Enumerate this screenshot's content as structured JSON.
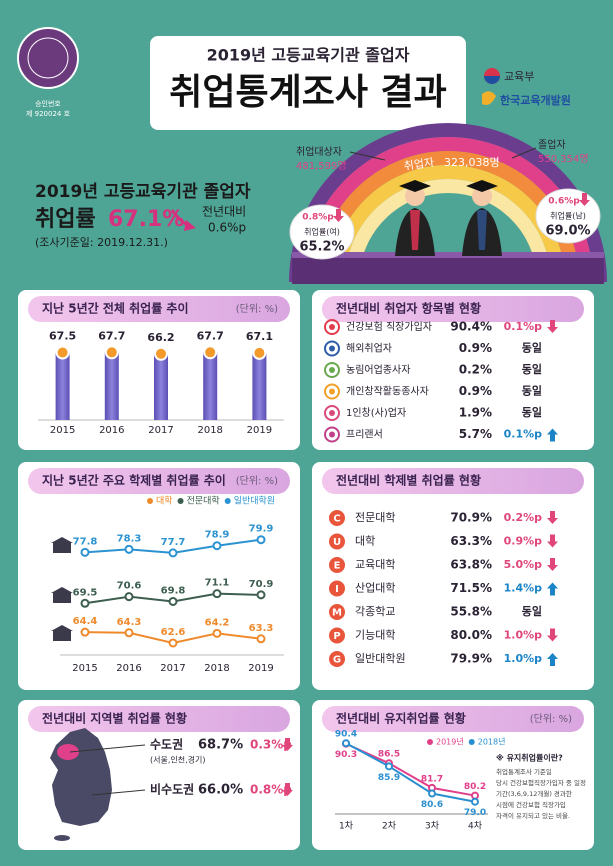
{
  "header": {
    "approval_label": "승인번호",
    "approval_no": "제 920024 호",
    "subtitle": "2019년 고등교육기관 졸업자",
    "title": "취업통계조사 결과",
    "ministry": "교육부",
    "institute": "한국교육개발원"
  },
  "hero": {
    "targets_label": "취업대상자",
    "targets": "481,599명",
    "employed_label": "취업자",
    "employed": "323,038명",
    "graduates_label": "졸업자",
    "graduates": "550,354명",
    "female": {
      "change": "0.8%p",
      "label": "취업률(여)",
      "rate": "65.2%",
      "direction": "down"
    },
    "male": {
      "change": "0.6%p",
      "label": "취업률(남)",
      "rate": "69.0%",
      "direction": "down"
    }
  },
  "summary": {
    "heading": "2019년 고등교육기관 졸업자",
    "label": "취업률",
    "rate": "67.1%",
    "change_label": "전년대비",
    "change": "0.6%p",
    "note": "(조사기준일: 2019.12.31.)"
  },
  "overall_trend": {
    "title": "지난 5년간 전체 취업률 추이",
    "unit": "(단위: %)",
    "chart_data": {
      "type": "bar",
      "categories": [
        "2015",
        "2016",
        "2017",
        "2018",
        "2019"
      ],
      "values": [
        67.5,
        67.7,
        66.2,
        67.7,
        67.1
      ],
      "color": "#7b6fc7",
      "marker_color": "#f39a2b",
      "ylim": [
        0,
        80
      ]
    }
  },
  "items": {
    "title": "전년대비 취업자 항목별 현황",
    "rows": [
      {
        "label": "건강보험 직장가입자",
        "value": "90.4%",
        "change": "0.1%p",
        "direction": "down"
      },
      {
        "label": "해외취업자",
        "value": "0.9%",
        "change": "동일",
        "direction": "same"
      },
      {
        "label": "농림어업종사자",
        "value": "0.2%",
        "change": "동일",
        "direction": "same"
      },
      {
        "label": "개인창작활동종사자",
        "value": "0.9%",
        "change": "동일",
        "direction": "same"
      },
      {
        "label": "1인창(사)업자",
        "value": "1.9%",
        "change": "동일",
        "direction": "same"
      },
      {
        "label": "프리랜서",
        "value": "5.7%",
        "change": "0.1%p",
        "direction": "up"
      }
    ]
  },
  "schools_trend": {
    "title": "지난 5년간 주요 학제별 취업률 추이",
    "unit": "(단위: %)",
    "chart_data": {
      "type": "line",
      "categories": [
        "2015",
        "2016",
        "2017",
        "2018",
        "2019"
      ],
      "series": [
        {
          "name": "대학",
          "color": "#ef8a2c",
          "values": [
            64.4,
            64.3,
            62.6,
            64.2,
            63.3
          ]
        },
        {
          "name": "전문대학",
          "color": "#3d5e4e",
          "values": [
            69.5,
            70.6,
            69.8,
            71.1,
            70.9
          ]
        },
        {
          "name": "일반대학원",
          "color": "#2b93d1",
          "values": [
            77.8,
            78.3,
            77.7,
            78.9,
            79.9
          ]
        }
      ]
    }
  },
  "schools": {
    "title": "전년대비 학제별 취업률 현황",
    "rows": [
      {
        "letter": "C",
        "label": "전문대학",
        "value": "70.9%",
        "change": "0.2%p",
        "direction": "down"
      },
      {
        "letter": "U",
        "label": "대학",
        "value": "63.3%",
        "change": "0.9%p",
        "direction": "down"
      },
      {
        "letter": "E",
        "label": "교육대학",
        "value": "63.8%",
        "change": "5.0%p",
        "direction": "down"
      },
      {
        "letter": "I",
        "label": "산업대학",
        "value": "71.5%",
        "change": "1.4%p",
        "direction": "up"
      },
      {
        "letter": "M",
        "label": "각종학교",
        "value": "55.8%",
        "change": "동일",
        "direction": "same"
      },
      {
        "letter": "P",
        "label": "기능대학",
        "value": "80.0%",
        "change": "1.0%p",
        "direction": "down"
      },
      {
        "letter": "G",
        "label": "일반대학원",
        "value": "79.9%",
        "change": "1.0%p",
        "direction": "up"
      }
    ]
  },
  "regions": {
    "title": "전년대비 지역별 취업률 현황",
    "rows": [
      {
        "label": "수도권",
        "sublabel": "(서울,인천,경기)",
        "value": "68.7%",
        "change": "0.3%p",
        "direction": "down"
      },
      {
        "label": "비수도권",
        "value": "66.0%",
        "change": "0.8%p",
        "direction": "down"
      }
    ]
  },
  "retention": {
    "title": "전년대비 유지취업률 현황",
    "unit": "(단위: %)",
    "chart_data": {
      "type": "line",
      "categories": [
        "1차",
        "2차",
        "3차",
        "4차"
      ],
      "series": [
        {
          "name": "2019년",
          "color": "#e0408a",
          "values": [
            90.3,
            86.5,
            81.7,
            80.2
          ]
        },
        {
          "name": "2018년",
          "color": "#2a8fd0",
          "values": [
            90.4,
            85.9,
            80.6,
            79.0
          ],
          "value_labels": [
            "90.4",
            "85.9",
            "80.6",
            "79.0"
          ]
        }
      ],
      "ylim": [
        77,
        92
      ]
    },
    "note_title": "※ 유지취업률이란?",
    "note_lines": [
      "취업통계조사 기준일",
      "당시 건강보험직장가입자 중 일정",
      "기간(3,6,9,12개월) 경과한",
      "시점에 건강보험 직장가입",
      "자격이 유지되고 있는 비율."
    ]
  }
}
